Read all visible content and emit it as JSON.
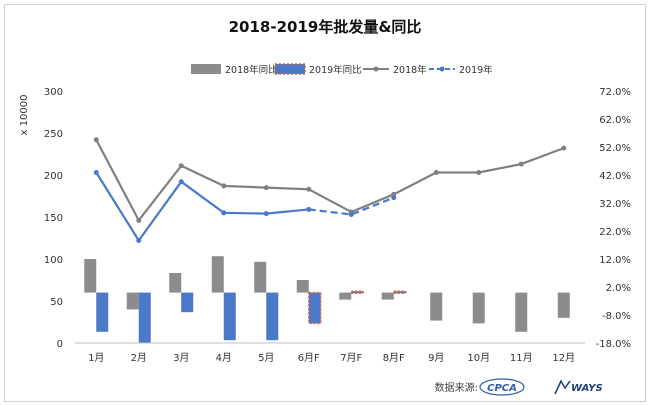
{
  "chart_data": {
    "type": "bar+line",
    "title": "2018-2019年批发量&同比",
    "categories": [
      "1月",
      "2月",
      "3月",
      "4月",
      "5月",
      "6月F",
      "7月F",
      "8月F",
      "9月",
      "10月",
      "11月",
      "12月"
    ],
    "left_axis": {
      "unit_label": "x 10000",
      "ylim": [
        0,
        300
      ],
      "ticks": [
        "0",
        "50",
        "100",
        "150",
        "200",
        "250",
        "300"
      ]
    },
    "right_axis": {
      "ylim": [
        -18.0,
        72.0
      ],
      "ticks": [
        "-18.0%",
        "-8.0%",
        "2.0%",
        "12.0%",
        "22.0%",
        "32.0%",
        "42.0%",
        "52.0%",
        "62.0%",
        "72.0%"
      ]
    },
    "series": [
      {
        "name": "2018年同比",
        "kind": "bar",
        "axis": "right",
        "color": "#8c8c8c",
        "values": [
          12,
          -6,
          7,
          13,
          11,
          4.5,
          -2.5,
          -2.5,
          -10,
          -11,
          -14,
          -9
        ]
      },
      {
        "name": "2019年同比",
        "kind": "bar",
        "axis": "right",
        "color": "#4a79c9",
        "forecast_border_color": "#e0622a",
        "forecast_from_index": 5,
        "values": [
          -14,
          -18,
          -7,
          -17,
          -17,
          -11,
          0.5,
          0.5,
          null,
          null,
          null,
          null
        ]
      },
      {
        "name": "2018年",
        "kind": "line",
        "axis": "left",
        "color": "#808080",
        "values": [
          242,
          146,
          211,
          187,
          185,
          183,
          156,
          177,
          203,
          203,
          213,
          232
        ]
      },
      {
        "name": "2019年",
        "kind": "line",
        "axis": "left",
        "color": "#4a79c9",
        "dashed_from_index": 5,
        "values": [
          203,
          122,
          192,
          155,
          154,
          159,
          153,
          173,
          null,
          null,
          null,
          null
        ]
      }
    ],
    "legend_position": "top-center",
    "grid": false
  },
  "footer": {
    "source_label": "数据来源:",
    "logo1_text": "CPCA",
    "logo2_text": "WAYS"
  }
}
